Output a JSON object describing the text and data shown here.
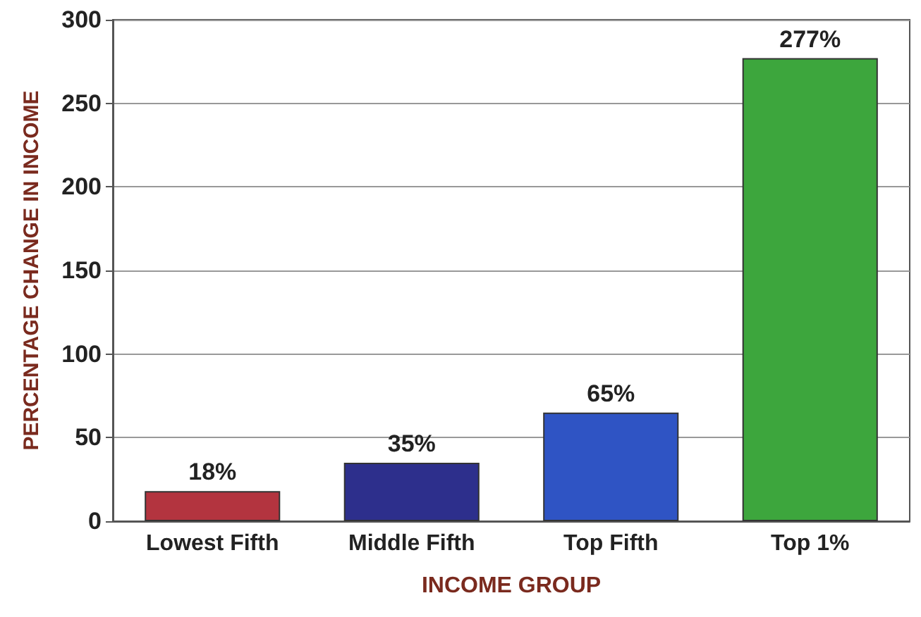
{
  "chart_data": {
    "type": "bar",
    "xlabel": "INCOME GROUP",
    "ylabel": "PERCENTAGE CHANGE IN INCOME",
    "categories": [
      "Lowest Fifth",
      "Middle Fifth",
      "Top Fifth",
      "Top 1%"
    ],
    "values": [
      18,
      35,
      65,
      277
    ],
    "colors": [
      "#b3343f",
      "#2d2f8c",
      "#2f54c4",
      "#3da63d"
    ],
    "value_labels": [
      "18%",
      "35%",
      "65%",
      "277%"
    ],
    "ylim": [
      0,
      300
    ],
    "yticks": [
      0,
      50,
      100,
      150,
      200,
      250,
      300
    ],
    "grid": "y"
  }
}
